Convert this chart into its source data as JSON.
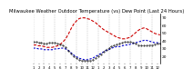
{
  "title": "Milwaukee Weather Outdoor Temperature (vs) Dew Point (Last 24 Hours)",
  "title_fontsize": 3.8,
  "bg_color": "#ffffff",
  "line_color_temp": "#cc0000",
  "line_color_dew": "#0000cc",
  "line_color_hum": "#000000",
  "ylim": [
    10,
    75
  ],
  "yticks": [
    20,
    30,
    40,
    50,
    60,
    70
  ],
  "ytick_labels": [
    "20",
    "30",
    "40",
    "50",
    "60",
    "70"
  ],
  "ytick_fontsize": 3.2,
  "xtick_fontsize": 2.8,
  "grid_color": "#999999",
  "n_points": 48,
  "temp_values": [
    34,
    34,
    33,
    33,
    32,
    31,
    31,
    31,
    32,
    33,
    35,
    38,
    42,
    48,
    55,
    61,
    65,
    68,
    69,
    69,
    68,
    67,
    65,
    63,
    60,
    57,
    54,
    52,
    50,
    48,
    46,
    44,
    43,
    42,
    42,
    43,
    44,
    47,
    50,
    53,
    55,
    56,
    55,
    53,
    51,
    49,
    48,
    47
  ],
  "dew_values": [
    30,
    30,
    29,
    29,
    28,
    28,
    28,
    28,
    29,
    29,
    30,
    30,
    29,
    27,
    24,
    21,
    19,
    17,
    16,
    15,
    15,
    16,
    17,
    19,
    21,
    23,
    25,
    27,
    28,
    30,
    31,
    32,
    32,
    33,
    34,
    34,
    35,
    36,
    37,
    38,
    39,
    40,
    40,
    39,
    38,
    37,
    37,
    36
  ],
  "hum_values": [
    38,
    38,
    37,
    37,
    36,
    36,
    37,
    37,
    37,
    36,
    35,
    34,
    31,
    27,
    23,
    19,
    17,
    15,
    14,
    14,
    14,
    14,
    15,
    17,
    20,
    22,
    25,
    28,
    30,
    32,
    34,
    35,
    36,
    37,
    38,
    38,
    38,
    37,
    36,
    34,
    33,
    33,
    33,
    34,
    34,
    35,
    36,
    36
  ],
  "x_tick_positions": [
    0,
    2,
    4,
    6,
    8,
    10,
    12,
    14,
    16,
    18,
    20,
    22,
    24,
    26,
    28,
    30,
    32,
    34,
    36,
    38,
    40,
    42,
    44,
    46
  ],
  "x_tick_labels": [
    "1",
    "2",
    "3",
    "4",
    "5",
    "6",
    "7",
    "8",
    "9",
    "10",
    "11",
    "12",
    "1",
    "2",
    "3",
    "4",
    "5",
    "6",
    "7",
    "8",
    "9",
    "10",
    "11",
    "12"
  ],
  "vgrid_positions": [
    0,
    4,
    8,
    12,
    16,
    20,
    24,
    28,
    32,
    36,
    40,
    44
  ]
}
